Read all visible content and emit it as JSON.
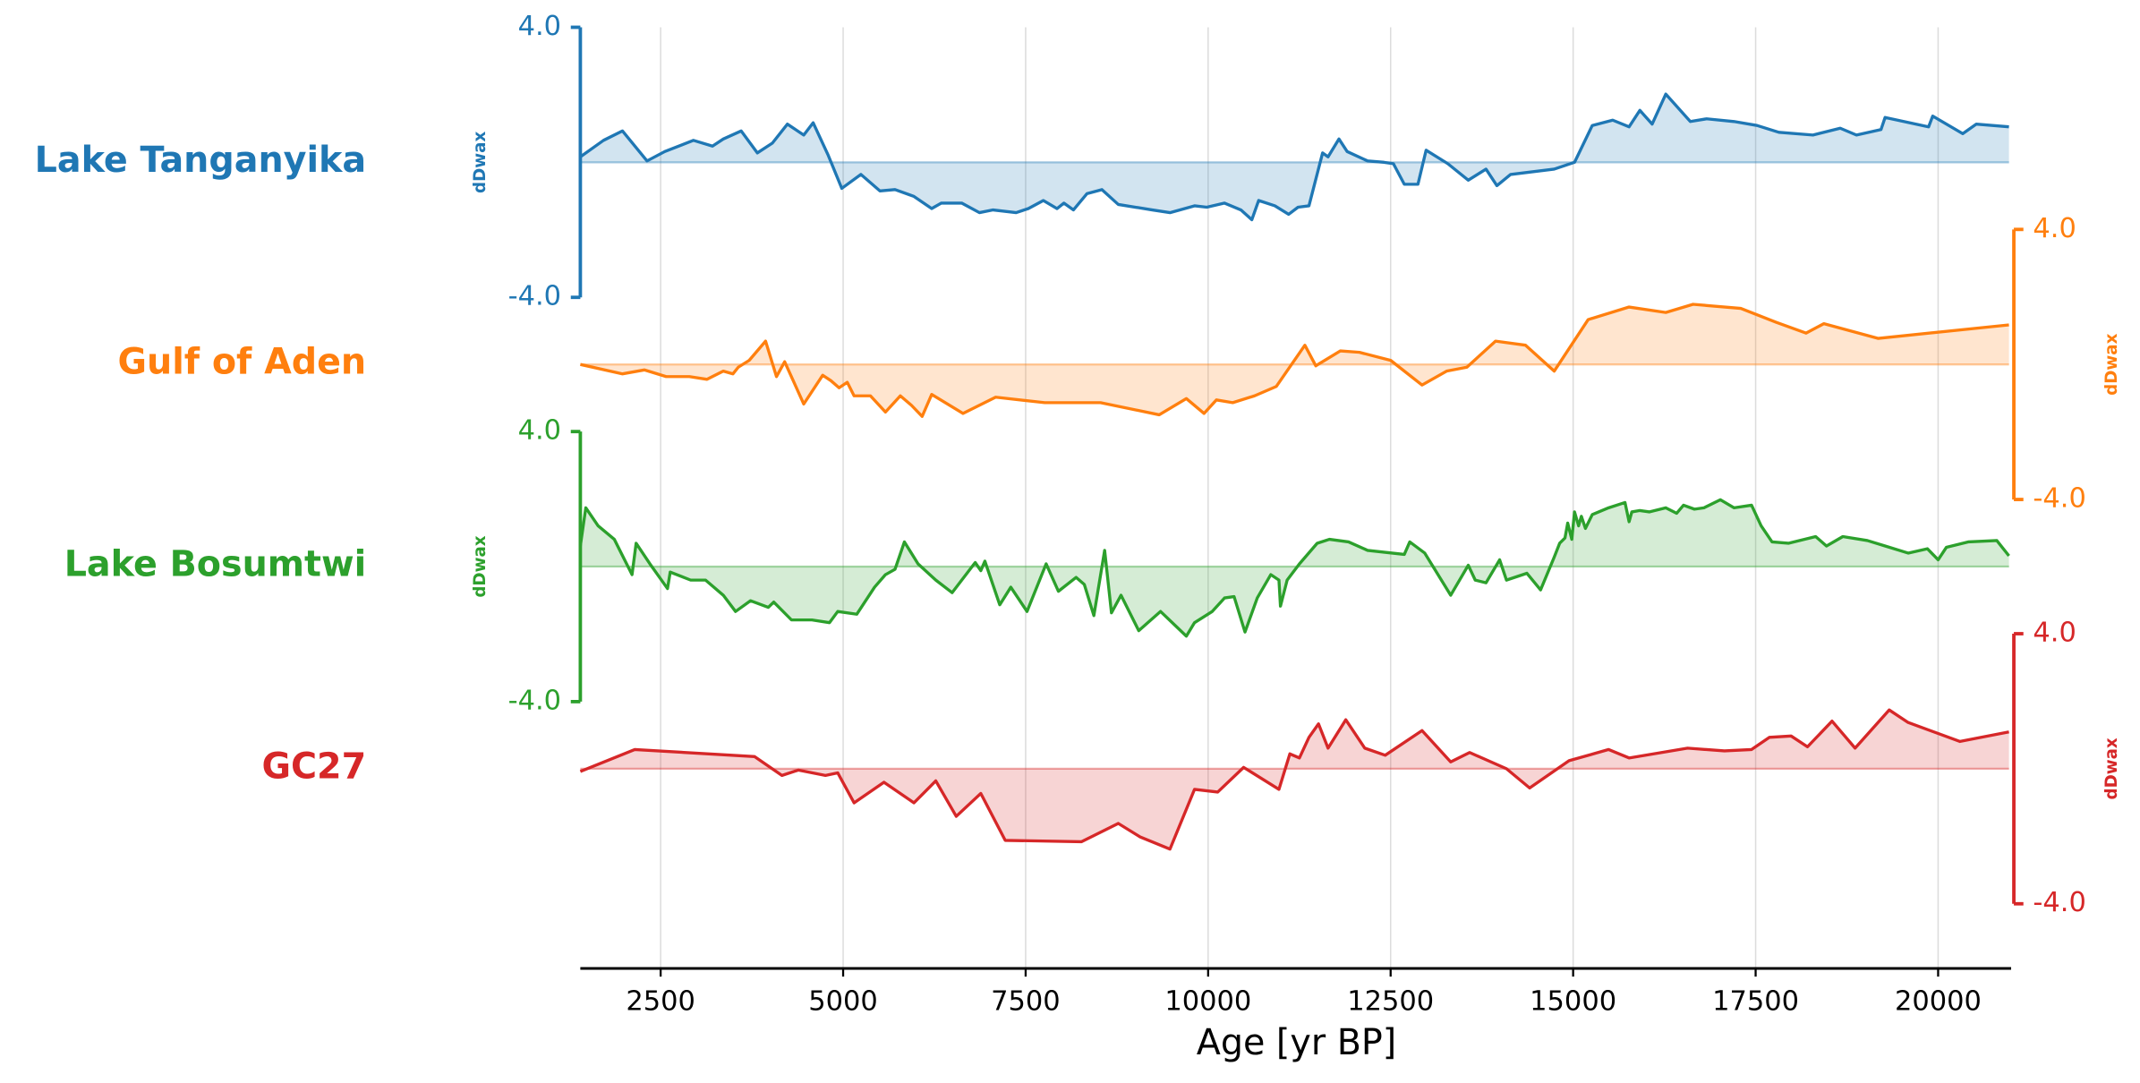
{
  "chart_data": {
    "type": "line",
    "xlabel": "Age [yr BP]",
    "ylabel": "dDwax",
    "grid": true,
    "xlim": [
      1400,
      21000
    ],
    "xticks": [
      2500,
      5000,
      7500,
      10000,
      12500,
      15000,
      17500,
      20000
    ],
    "series": [
      {
        "name": "Lake Tanganyika",
        "color": "#1f77b4",
        "side": "left",
        "ylim": [
          -4,
          4
        ],
        "yticks": [
          {
            "value": 4,
            "label": "4.0"
          },
          {
            "value": -4,
            "label": "-4.0"
          }
        ],
        "x": [
          1400,
          1717,
          1978,
          2314,
          2557,
          2949,
          3210,
          3359,
          3602,
          3825,
          4031,
          4236,
          4460,
          4590,
          4796,
          4982,
          5243,
          5505,
          5710,
          5971,
          6213,
          6344,
          6624,
          6867,
          7053,
          7370,
          7538,
          7743,
          7930,
          8023,
          8154,
          8340,
          8545,
          8769,
          9236,
          9478,
          9814,
          9982,
          10225,
          10449,
          10598,
          10691,
          10915,
          11102,
          11232,
          11382,
          11568,
          11643,
          11792,
          11904,
          12184,
          12408,
          12538,
          12688,
          12874,
          12986,
          13284,
          13564,
          13807,
          13956,
          14143,
          14740,
          15020,
          15262,
          15542,
          15766,
          15915,
          16083,
          16270,
          16606,
          16830,
          17203,
          17520,
          17818,
          18285,
          18658,
          18882,
          19217,
          19273,
          19870,
          19926,
          20337,
          20523,
          20971
        ],
        "values": [
          0.16,
          0.65,
          0.93,
          0.04,
          0.32,
          0.65,
          0.48,
          0.69,
          0.93,
          0.28,
          0.57,
          1.13,
          0.81,
          1.17,
          0.2,
          -0.77,
          -0.36,
          -0.85,
          -0.81,
          -1.01,
          -1.37,
          -1.21,
          -1.21,
          -1.49,
          -1.41,
          -1.49,
          -1.37,
          -1.13,
          -1.37,
          -1.21,
          -1.41,
          -0.93,
          -0.81,
          -1.25,
          -1.41,
          -1.49,
          -1.29,
          -1.33,
          -1.21,
          -1.41,
          -1.7,
          -1.13,
          -1.29,
          -1.54,
          -1.33,
          -1.29,
          0.28,
          0.16,
          0.69,
          0.32,
          0.04,
          0,
          -0.04,
          -0.65,
          -0.65,
          0.36,
          -0.04,
          -0.53,
          -0.2,
          -0.69,
          -0.36,
          -0.2,
          0,
          1.09,
          1.25,
          1.05,
          1.54,
          1.13,
          2.02,
          1.21,
          1.29,
          1.21,
          1.09,
          0.89,
          0.81,
          1.01,
          0.81,
          0.97,
          1.33,
          1.05,
          1.37,
          0.85,
          1.13,
          1.05
        ]
      },
      {
        "name": "Gulf of Aden",
        "color": "#ff7f0e",
        "side": "right",
        "ylim": [
          -4,
          4
        ],
        "yticks": [
          {
            "value": 4,
            "label": "4.0"
          },
          {
            "value": -4,
            "label": "-4.0"
          }
        ],
        "x": [
          1400,
          1978,
          2277,
          2575,
          2893,
          3135,
          3359,
          3490,
          3564,
          3713,
          3937,
          4087,
          4199,
          4460,
          4721,
          4833,
          4945,
          5057,
          5150,
          5374,
          5579,
          5784,
          5934,
          6083,
          6213,
          6643,
          7090,
          7762,
          8527,
          9329,
          9702,
          9945,
          10113,
          10337,
          10635,
          10934,
          11326,
          11475,
          11811,
          12072,
          12501,
          12930,
          13266,
          13545,
          13937,
          14348,
          14740,
          15206,
          15766,
          16270,
          16643,
          17296,
          17781,
          18191,
          18434,
          19180,
          20971
        ],
        "values": [
          0,
          -0.28,
          -0.16,
          -0.36,
          -0.36,
          -0.44,
          -0.2,
          -0.28,
          -0.08,
          0.12,
          0.69,
          -0.36,
          0.08,
          -1.17,
          -0.32,
          -0.48,
          -0.69,
          -0.53,
          -0.93,
          -0.93,
          -1.41,
          -0.93,
          -1.21,
          -1.54,
          -0.89,
          -1.45,
          -0.97,
          -1.13,
          -1.13,
          -1.49,
          -1.01,
          -1.45,
          -1.05,
          -1.13,
          -0.93,
          -0.65,
          0.57,
          -0.04,
          0.4,
          0.36,
          0.12,
          -0.61,
          -0.2,
          -0.08,
          0.69,
          0.57,
          -0.2,
          1.33,
          1.7,
          1.54,
          1.78,
          1.66,
          1.25,
          0.93,
          1.21,
          0.77,
          1.17
        ]
      },
      {
        "name": "Lake Bosumtwi",
        "color": "#2ca02c",
        "side": "left",
        "ylim": [
          -4,
          4
        ],
        "yticks": [
          {
            "value": 4,
            "label": "4.0"
          },
          {
            "value": -4,
            "label": "-4.0"
          }
        ],
        "x": [
          1400,
          1475,
          1643,
          1866,
          2109,
          2165,
          2352,
          2594,
          2631,
          2911,
          3116,
          3359,
          3527,
          3732,
          3975,
          4049,
          4292,
          4572,
          4814,
          4926,
          5187,
          5430,
          5579,
          5710,
          5840,
          6027,
          6270,
          6493,
          6810,
          6885,
          6941,
          7146,
          7296,
          7520,
          7781,
          7949,
          8191,
          8303,
          8434,
          8583,
          8676,
          8807,
          9049,
          9348,
          9702,
          9814,
          10057,
          10225,
          10355,
          10505,
          10673,
          10859,
          10971,
          10990,
          11083,
          11251,
          11494,
          11661,
          11923,
          12184,
          12688,
          12762,
          12967,
          13322,
          13564,
          13658,
          13807,
          13994,
          14087,
          14367,
          14553,
          14740,
          14815,
          14889,
          14926,
          14982,
          15020,
          15076,
          15113,
          15169,
          15262,
          15486,
          15710,
          15766,
          15803,
          15915,
          16046,
          16270,
          16419,
          16512,
          16662,
          16792,
          17016,
          17203,
          17445,
          17576,
          17725,
          17949,
          18322,
          18471,
          18695,
          19031,
          19273,
          19590,
          19852,
          20001,
          20113,
          20411,
          20803,
          20971
        ],
        "values": [
          0.61,
          1.74,
          1.21,
          0.81,
          -0.24,
          0.69,
          0.08,
          -0.65,
          -0.16,
          -0.4,
          -0.4,
          -0.85,
          -1.33,
          -1.01,
          -1.21,
          -1.05,
          -1.58,
          -1.58,
          -1.66,
          -1.33,
          -1.41,
          -0.61,
          -0.24,
          -0.08,
          0.73,
          0.08,
          -0.4,
          -0.77,
          0.12,
          -0.12,
          0.16,
          -1.13,
          -0.61,
          -1.33,
          0.08,
          -0.73,
          -0.32,
          -0.53,
          -1.45,
          0.48,
          -1.37,
          -0.85,
          -1.9,
          -1.33,
          -2.06,
          -1.66,
          -1.33,
          -0.93,
          -0.89,
          -1.94,
          -0.93,
          -0.24,
          -0.4,
          -1.17,
          -0.4,
          0.08,
          0.69,
          0.81,
          0.73,
          0.48,
          0.36,
          0.73,
          0.4,
          -0.85,
          0.04,
          -0.4,
          -0.48,
          0.2,
          -0.4,
          -0.2,
          -0.69,
          0.28,
          0.69,
          0.85,
          1.29,
          0.81,
          1.62,
          1.21,
          1.49,
          1.13,
          1.54,
          1.74,
          1.9,
          1.33,
          1.62,
          1.66,
          1.62,
          1.74,
          1.58,
          1.82,
          1.7,
          1.74,
          1.98,
          1.74,
          1.82,
          1.21,
          0.73,
          0.69,
          0.89,
          0.61,
          0.89,
          0.77,
          0.61,
          0.4,
          0.53,
          0.2,
          0.57,
          0.73,
          0.77,
          0.32
        ]
      },
      {
        "name": "GC27",
        "color": "#d62728",
        "side": "right",
        "ylim": [
          -4,
          4
        ],
        "yticks": [
          {
            "value": 4,
            "label": "4.0"
          },
          {
            "value": -4,
            "label": "-4.0"
          }
        ],
        "x": [
          1400,
          2146,
          3788,
          4161,
          4385,
          4758,
          4926,
          5150,
          5560,
          5971,
          6270,
          6549,
          6885,
          7221,
          8266,
          8769,
          9068,
          9478,
          9814,
          10132,
          10486,
          10971,
          11120,
          11251,
          11382,
          11512,
          11643,
          11885,
          12146,
          12426,
          12930,
          13322,
          13583,
          14087,
          14404,
          14945,
          15486,
          15766,
          16568,
          17072,
          17445,
          17688,
          17986,
          18210,
          18546,
          18863,
          19329,
          19590,
          20299,
          20971
        ],
        "values": [
          -0.08,
          0.57,
          0.36,
          -0.2,
          -0.04,
          -0.2,
          -0.12,
          -1.01,
          -0.4,
          -1.01,
          -0.36,
          -1.41,
          -0.73,
          -2.12,
          -2.16,
          -1.62,
          -2.02,
          -2.38,
          -0.61,
          -0.69,
          0.04,
          -0.61,
          0.44,
          0.32,
          0.93,
          1.33,
          0.61,
          1.45,
          0.61,
          0.4,
          1.13,
          0.2,
          0.48,
          0,
          -0.57,
          0.24,
          0.57,
          0.32,
          0.61,
          0.53,
          0.57,
          0.93,
          0.97,
          0.65,
          1.41,
          0.61,
          1.74,
          1.37,
          0.81,
          1.09
        ]
      }
    ]
  }
}
